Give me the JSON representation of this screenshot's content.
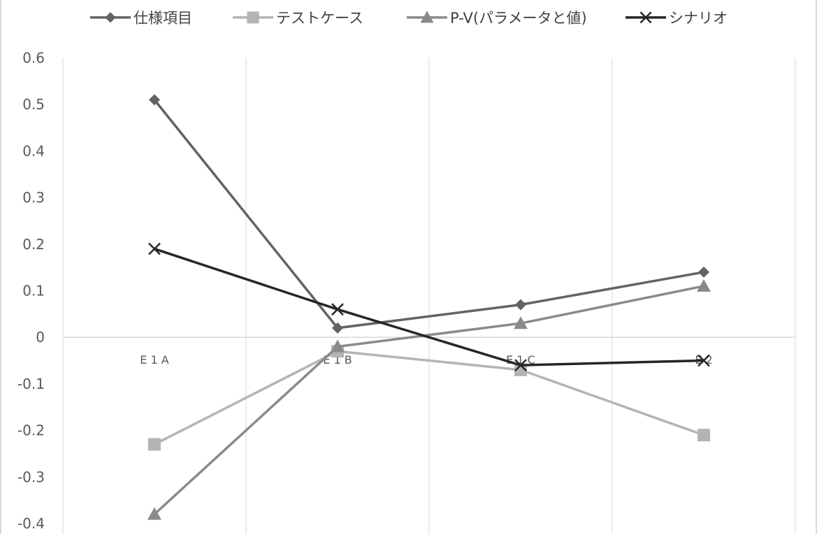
{
  "chart_data": {
    "type": "line",
    "title": "",
    "xlabel": "",
    "ylabel": "",
    "categories": [
      "E1A",
      "E1B",
      "E1C",
      "E2"
    ],
    "category_labels": [
      "E 1 A",
      "E 1 B",
      "E 1 C",
      "E 2"
    ],
    "ylim": [
      -0.4,
      0.6
    ],
    "yticks": [
      0.6,
      0.5,
      0.4,
      0.3,
      0.2,
      0.1,
      0,
      -0.1,
      -0.2,
      -0.3,
      -0.4
    ],
    "ytick_labels": [
      "0.6",
      "0.5",
      "0.4",
      "0.3",
      "0.2",
      "0.1",
      "0",
      "-0.1",
      "-0.2",
      "-0.3",
      "-0.4"
    ],
    "grid": "vertical",
    "legend_position": "top",
    "series": [
      {
        "name": "仕様項目",
        "marker": "diamond",
        "color": "#636363",
        "values": [
          0.51,
          0.02,
          0.07,
          0.14
        ]
      },
      {
        "name": "テストケース",
        "marker": "square",
        "color": "#b4b4b4",
        "values": [
          -0.23,
          -0.03,
          -0.07,
          -0.21
        ]
      },
      {
        "name": "P-V(パラメータと値)",
        "marker": "triangle",
        "color": "#8a8a8a",
        "values": [
          -0.38,
          -0.02,
          0.03,
          0.11
        ]
      },
      {
        "name": "シナリオ",
        "marker": "x",
        "color": "#262626",
        "values": [
          0.19,
          0.06,
          -0.06,
          -0.05
        ]
      }
    ]
  }
}
